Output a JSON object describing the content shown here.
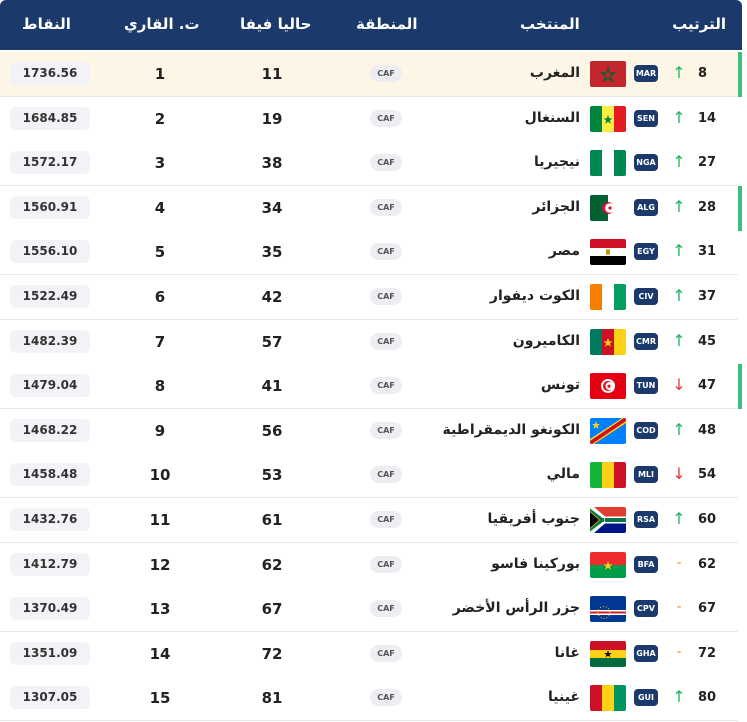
{
  "header": {
    "rank": "الترتيب",
    "team": "المنتخب",
    "region": "المنطقة",
    "fifa": "حاليا فيفا",
    "continental": "ت. القاري",
    "points": "النقاط"
  },
  "colors": {
    "header_bg": "#1b3a6b",
    "up": "#22b35e",
    "down": "#e03a3a",
    "same": "#d9a21b",
    "accent": "#3cbf7a"
  },
  "rows": [
    {
      "rank": "8",
      "trend": "up",
      "code": "MAR",
      "flag": "morocco-flag",
      "name": "المغرب",
      "region": "CAF",
      "fifa": "11",
      "cont": "1",
      "points": "1736.56"
    },
    {
      "rank": "14",
      "trend": "up",
      "code": "SEN",
      "flag": "senegal-flag",
      "name": "السنغال",
      "region": "CAF",
      "fifa": "19",
      "cont": "2",
      "points": "1684.85"
    },
    {
      "rank": "27",
      "trend": "up",
      "code": "NGA",
      "flag": "nigeria-flag",
      "name": "نيجيريا",
      "region": "CAF",
      "fifa": "38",
      "cont": "3",
      "points": "1572.17"
    },
    {
      "rank": "28",
      "trend": "up",
      "code": "ALG",
      "flag": "algeria-flag",
      "name": "الجزائر",
      "region": "CAF",
      "fifa": "34",
      "cont": "4",
      "points": "1560.91"
    },
    {
      "rank": "31",
      "trend": "up",
      "code": "EGY",
      "flag": "egypt-flag",
      "name": "مصر",
      "region": "CAF",
      "fifa": "35",
      "cont": "5",
      "points": "1556.10"
    },
    {
      "rank": "37",
      "trend": "up",
      "code": "CIV",
      "flag": "ivory-coast-flag",
      "name": "الكوت ديفوار",
      "region": "CAF",
      "fifa": "42",
      "cont": "6",
      "points": "1522.49"
    },
    {
      "rank": "45",
      "trend": "up",
      "code": "CMR",
      "flag": "cameroon-flag",
      "name": "الكاميرون",
      "region": "CAF",
      "fifa": "57",
      "cont": "7",
      "points": "1482.39"
    },
    {
      "rank": "47",
      "trend": "down",
      "code": "TUN",
      "flag": "tunisia-flag",
      "name": "تونس",
      "region": "CAF",
      "fifa": "41",
      "cont": "8",
      "points": "1479.04"
    },
    {
      "rank": "48",
      "trend": "up",
      "code": "COD",
      "flag": "dr-congo-flag",
      "name": "الكونغو الديمقراطية",
      "region": "CAF",
      "fifa": "56",
      "cont": "9",
      "points": "1468.22"
    },
    {
      "rank": "54",
      "trend": "down",
      "code": "MLI",
      "flag": "mali-flag",
      "name": "مالي",
      "region": "CAF",
      "fifa": "53",
      "cont": "10",
      "points": "1458.48"
    },
    {
      "rank": "60",
      "trend": "up",
      "code": "RSA",
      "flag": "south-africa-flag",
      "name": "جنوب أفريقيا",
      "region": "CAF",
      "fifa": "61",
      "cont": "11",
      "points": "1432.76"
    },
    {
      "rank": "62",
      "trend": "same",
      "code": "BFA",
      "flag": "burkina-faso-flag",
      "name": "بوركينا فاسو",
      "region": "CAF",
      "fifa": "62",
      "cont": "12",
      "points": "1412.79"
    },
    {
      "rank": "67",
      "trend": "same",
      "code": "CPV",
      "flag": "cape-verde-flag",
      "name": "جزر الرأس الأخضر",
      "region": "CAF",
      "fifa": "67",
      "cont": "13",
      "points": "1370.49"
    },
    {
      "rank": "72",
      "trend": "same",
      "code": "GHA",
      "flag": "ghana-flag",
      "name": "غانا",
      "region": "CAF",
      "fifa": "72",
      "cont": "14",
      "points": "1351.09"
    },
    {
      "rank": "80",
      "trend": "up",
      "code": "GUI",
      "flag": "guinea-flag",
      "name": "غينيا",
      "region": "CAF",
      "fifa": "81",
      "cont": "15",
      "points": "1307.05"
    }
  ]
}
